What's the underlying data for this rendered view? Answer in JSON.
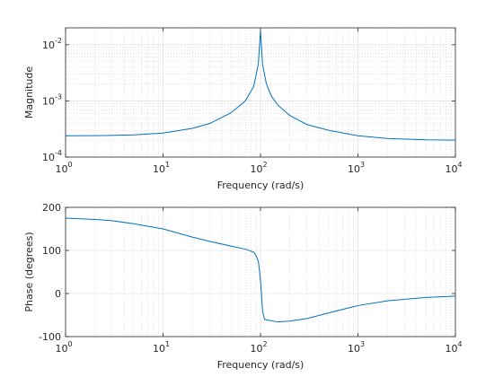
{
  "chart_data": [
    {
      "type": "line",
      "title": "",
      "xlabel": "Frequency (rad/s)",
      "ylabel": "Magnitude",
      "xscale": "log",
      "yscale": "log",
      "xlim": [
        1,
        10000
      ],
      "ylim": [
        0.0001,
        0.02
      ],
      "grid": "major and minor",
      "x_ticks": [
        {
          "base": "10",
          "exp": "0",
          "value": 1
        },
        {
          "base": "10",
          "exp": "1",
          "value": 10
        },
        {
          "base": "10",
          "exp": "2",
          "value": 100
        },
        {
          "base": "10",
          "exp": "3",
          "value": 1000
        },
        {
          "base": "10",
          "exp": "4",
          "value": 10000
        }
      ],
      "y_ticks": [
        {
          "base": "10",
          "exp": "-4",
          "value": 0.0001
        },
        {
          "base": "10",
          "exp": "-3",
          "value": 0.001
        },
        {
          "base": "10",
          "exp": "-2",
          "value": 0.01
        }
      ],
      "series": [
        {
          "color": "#0072bd",
          "x": [
            1,
            2,
            3,
            5,
            10,
            20,
            30,
            50,
            70,
            85,
            95,
            100,
            105,
            115,
            130,
            150,
            200,
            300,
            500,
            1000,
            2000,
            5000,
            10000
          ],
          "y": [
            0.00024,
            0.000241,
            0.000243,
            0.000249,
            0.000268,
            0.000325,
            0.000395,
            0.000616,
            0.001,
            0.0018,
            0.0045,
            0.018,
            0.0045,
            0.002,
            0.0012,
            0.00085,
            0.00055,
            0.00038,
            0.0003,
            0.00024,
            0.000215,
            0.000203,
            0.0002
          ]
        }
      ]
    },
    {
      "type": "line",
      "title": "",
      "xlabel": "Frequency (rad/s)",
      "ylabel": "Phase (degrees)",
      "xscale": "log",
      "xlim": [
        1,
        10000
      ],
      "ylim": [
        -100,
        200
      ],
      "grid": "major and minor",
      "x_ticks": [
        {
          "base": "10",
          "exp": "0",
          "value": 1
        },
        {
          "base": "10",
          "exp": "1",
          "value": 10
        },
        {
          "base": "10",
          "exp": "2",
          "value": 100
        },
        {
          "base": "10",
          "exp": "3",
          "value": 1000
        },
        {
          "base": "10",
          "exp": "4",
          "value": 10000
        }
      ],
      "y_ticks": [
        "-100",
        "0",
        "100",
        "200"
      ],
      "series": [
        {
          "color": "#0072bd",
          "x": [
            1,
            2,
            3,
            5,
            10,
            20,
            30,
            50,
            70,
            85,
            90,
            95,
            98,
            100,
            102,
            105,
            110,
            150,
            200,
            300,
            500,
            1000,
            2000,
            5000,
            10000
          ],
          "y": [
            175,
            172,
            169,
            162,
            150,
            131,
            121,
            110,
            103,
            96,
            88,
            75,
            50,
            30,
            5,
            -40,
            -60,
            -66,
            -64,
            -58,
            -45,
            -28,
            -17,
            -9,
            -6
          ]
        }
      ]
    }
  ]
}
